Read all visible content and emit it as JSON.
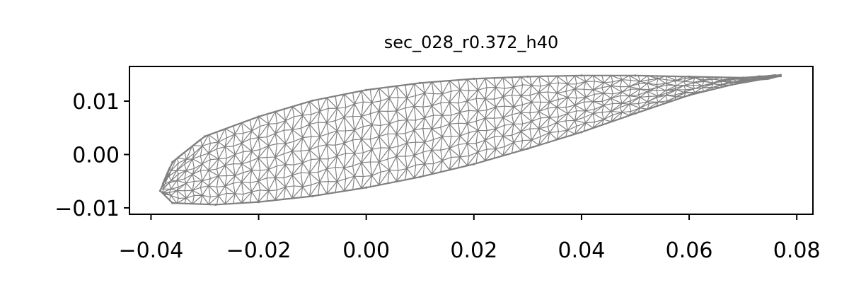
{
  "chart_data": {
    "type": "scatter",
    "title": "sec_028_r0.372_h40",
    "xlabel": "",
    "ylabel": "",
    "xlim": [
      -0.044,
      0.083
    ],
    "ylim": [
      -0.0112,
      0.0165
    ],
    "x_ticks": [
      -0.04,
      -0.02,
      0.0,
      0.02,
      0.04,
      0.06,
      0.08
    ],
    "x_tick_labels": [
      "−0.04",
      "−0.02",
      "0.00",
      "0.02",
      "0.04",
      "0.06",
      "0.08"
    ],
    "y_ticks": [
      -0.01,
      0.0,
      0.01
    ],
    "y_tick_labels": [
      "−0.01",
      "0.00",
      "0.01"
    ],
    "grid": false,
    "mesh_color": "#808080",
    "series": [
      {
        "values": [
          [
            0.077,
            0.0149
          ],
          [
            0.07,
            0.0144
          ],
          [
            0.06,
            0.0146
          ],
          [
            0.05,
            0.0148
          ],
          [
            0.04,
            0.0148
          ],
          [
            0.03,
            0.0146
          ],
          [
            0.02,
            0.0142
          ],
          [
            0.01,
            0.0134
          ],
          [
            0.0,
            0.0121
          ],
          [
            -0.01,
            0.0101
          ],
          [
            -0.02,
            0.0071
          ],
          [
            -0.03,
            0.0034
          ],
          [
            -0.036,
            -0.0014
          ],
          [
            -0.0383,
            -0.0068
          ],
          [
            -0.036,
            -0.0091
          ],
          [
            -0.028,
            -0.0094
          ],
          [
            -0.02,
            -0.0089
          ],
          [
            -0.01,
            -0.0078
          ],
          [
            0.0,
            -0.0062
          ],
          [
            0.01,
            -0.0042
          ],
          [
            0.02,
            -0.0018
          ],
          [
            0.03,
            0.0011
          ],
          [
            0.04,
            0.0042
          ],
          [
            0.05,
            0.0077
          ],
          [
            0.06,
            0.0111
          ],
          [
            0.068,
            0.0131
          ],
          [
            0.077,
            0.0147
          ]
        ]
      }
    ]
  }
}
